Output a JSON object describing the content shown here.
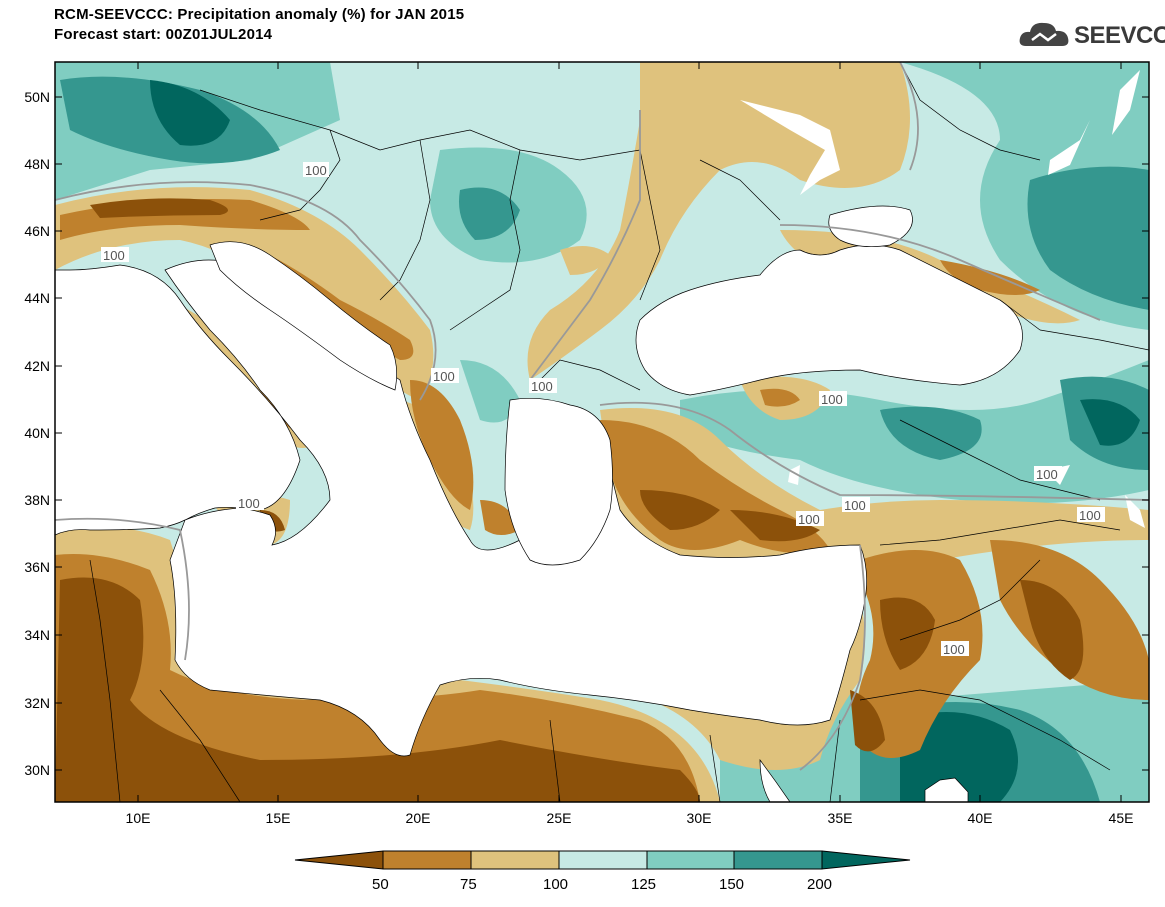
{
  "header": {
    "title_line1": "RCM-SEEVCCC: Precipitation anomaly (%) for JAN 2015",
    "title_line2": "Forecast start: 00Z01JUL2014"
  },
  "logo": {
    "text": "SEEVCCC",
    "icon": "cloud-icon"
  },
  "map": {
    "lon_ticks": [
      "10E",
      "15E",
      "20E",
      "25E",
      "30E",
      "35E",
      "40E",
      "45E"
    ],
    "lat_ticks": [
      "50N",
      "48N",
      "46N",
      "44N",
      "42N",
      "40N",
      "38N",
      "36N",
      "34N",
      "32N",
      "30N"
    ],
    "contour_labels": [
      "100",
      "100",
      "100",
      "100",
      "100",
      "100",
      "100",
      "100",
      "100",
      "100",
      "100"
    ]
  },
  "colorbar": {
    "labels": [
      "50",
      "75",
      "100",
      "125",
      "150",
      "200"
    ],
    "colors": [
      "#8c510a",
      "#bf812d",
      "#dfc27d",
      "#c7eae5",
      "#80cdc1",
      "#35978f",
      "#01665e"
    ]
  }
}
